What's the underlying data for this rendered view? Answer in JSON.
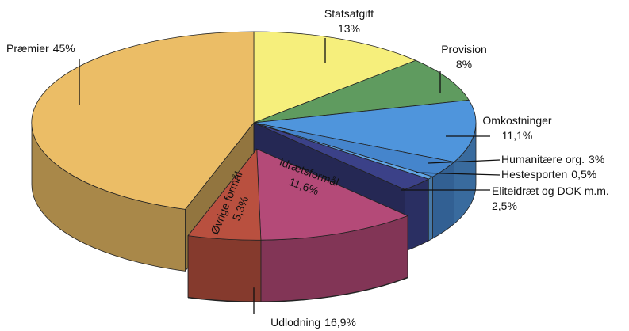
{
  "chart_data": {
    "type": "pie3d",
    "categories": [
      "Statsafgift",
      "Provision",
      "Omkostninger",
      "Humanitære org.",
      "Hestesporten",
      "Eliteidræt og DOK m.m.",
      "Idrætsformål",
      "Øvrige formål",
      "Præmier"
    ],
    "values": [
      13,
      8,
      11.1,
      3,
      0.5,
      2.5,
      11.6,
      5.3,
      45
    ],
    "value_labels": [
      "13%",
      "8%",
      "11,1%",
      "3%",
      "0,5%",
      "2,5%",
      "11,6%",
      "5,3%",
      "45%"
    ],
    "colors": [
      "#f6ef7c",
      "#5f9b5f",
      "#4f95dc",
      "#4585cc",
      "#62a6e6",
      "#3b4188",
      "#b44a78",
      "#b9503f",
      "#ebbd66"
    ],
    "explode": [
      false,
      false,
      false,
      false,
      false,
      false,
      true,
      true,
      false
    ],
    "groups": [
      {
        "name": "Udlodning",
        "value": 16.9,
        "value_label": "16,9%"
      }
    ]
  }
}
